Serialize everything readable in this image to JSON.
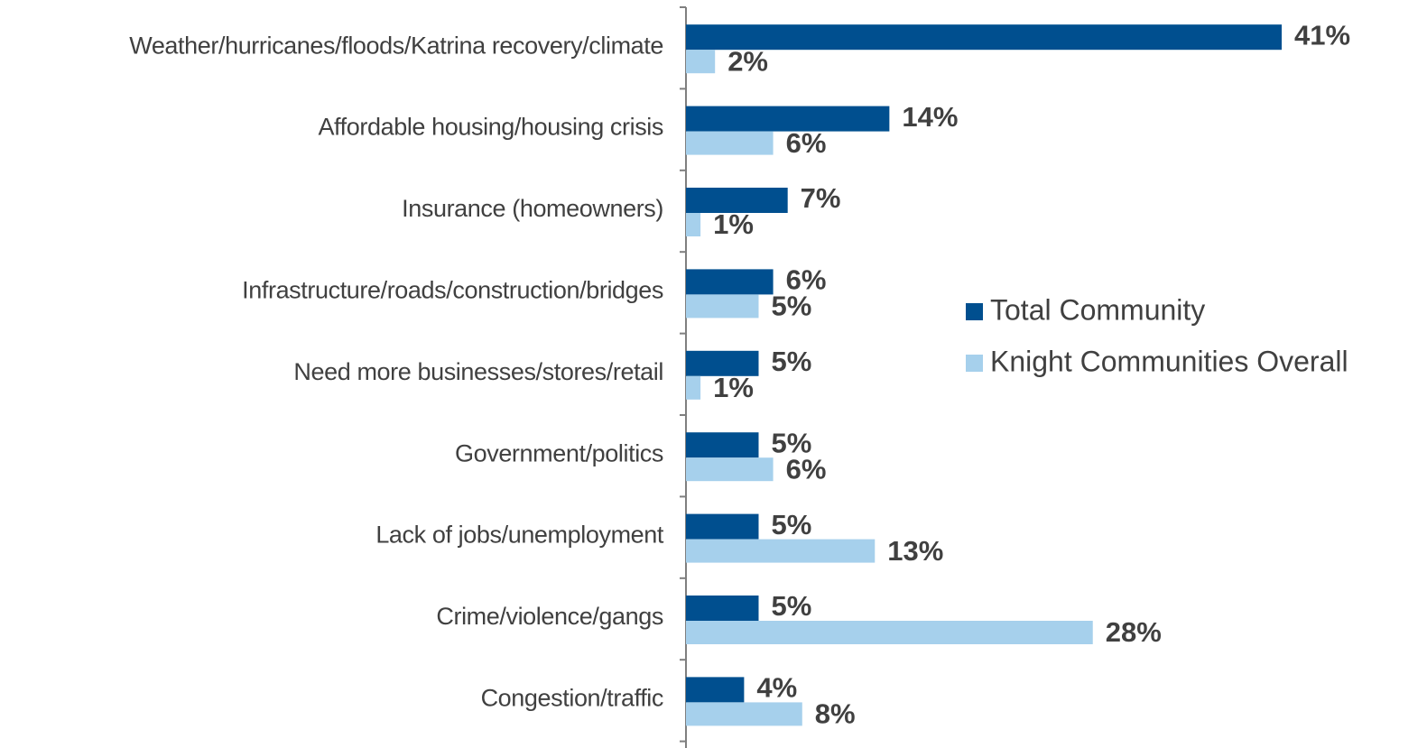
{
  "chart_data": {
    "type": "bar",
    "orientation": "horizontal",
    "categories": [
      "Weather/hurricanes/floods/Katrina recovery/climate",
      "Affordable housing/housing crisis",
      "Insurance (homeowners)",
      "Infrastructure/roads/construction/bridges",
      "Need more businesses/stores/retail",
      "Government/politics",
      "Lack of jobs/unemployment",
      "Crime/violence/gangs",
      "Congestion/traffic"
    ],
    "series": [
      {
        "name": "Total Community",
        "color": "#004f8f",
        "values": [
          41,
          14,
          7,
          6,
          5,
          5,
          5,
          5,
          4
        ],
        "value_labels": [
          "41%",
          "14%",
          "7%",
          "6%",
          "5%",
          "5%",
          "5%",
          "5%",
          "4%"
        ]
      },
      {
        "name": "Knight Communities Overall",
        "color": "#a6d0ec",
        "values": [
          2,
          6,
          1,
          5,
          1,
          6,
          13,
          28,
          8
        ],
        "value_labels": [
          "2%",
          "6%",
          "1%",
          "5%",
          "1%",
          "6%",
          "13%",
          "28%",
          "8%"
        ]
      }
    ],
    "legend": "right"
  }
}
